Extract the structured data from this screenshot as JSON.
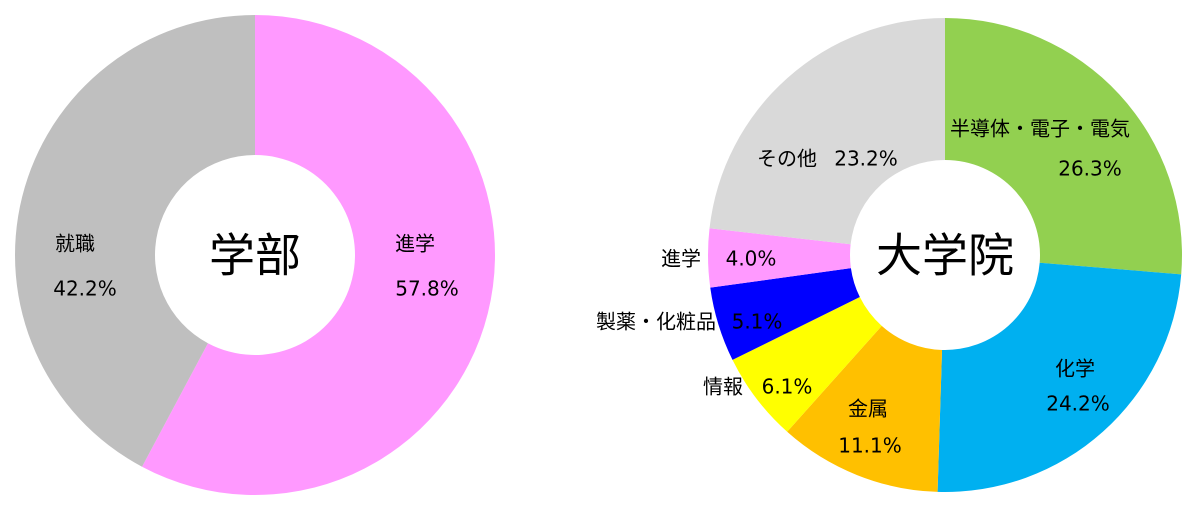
{
  "chart_data": [
    {
      "type": "donut",
      "center_label": "学部",
      "categories": [
        "進学",
        "就職"
      ],
      "values": [
        57.8,
        42.2
      ],
      "value_labels": [
        "57.8%",
        "42.2%"
      ],
      "colors": [
        "#ff99ff",
        "#bfbfbf"
      ]
    },
    {
      "type": "donut",
      "center_label": "大学院",
      "categories": [
        "半導体・電子・電気",
        "化学",
        "金属",
        "情報",
        "製薬・化粧品",
        "進学",
        "その他"
      ],
      "values": [
        26.3,
        24.2,
        11.1,
        6.1,
        5.1,
        4.0,
        23.2
      ],
      "value_labels": [
        "26.3%",
        "24.2%",
        "11.1%",
        "6.1%",
        "5.1%",
        "4.0%",
        "23.2%"
      ],
      "colors": [
        "#92d050",
        "#00b0f0",
        "#ffc000",
        "#ffff00",
        "#0000ff",
        "#ff99ff",
        "#d9d9d9"
      ]
    }
  ]
}
